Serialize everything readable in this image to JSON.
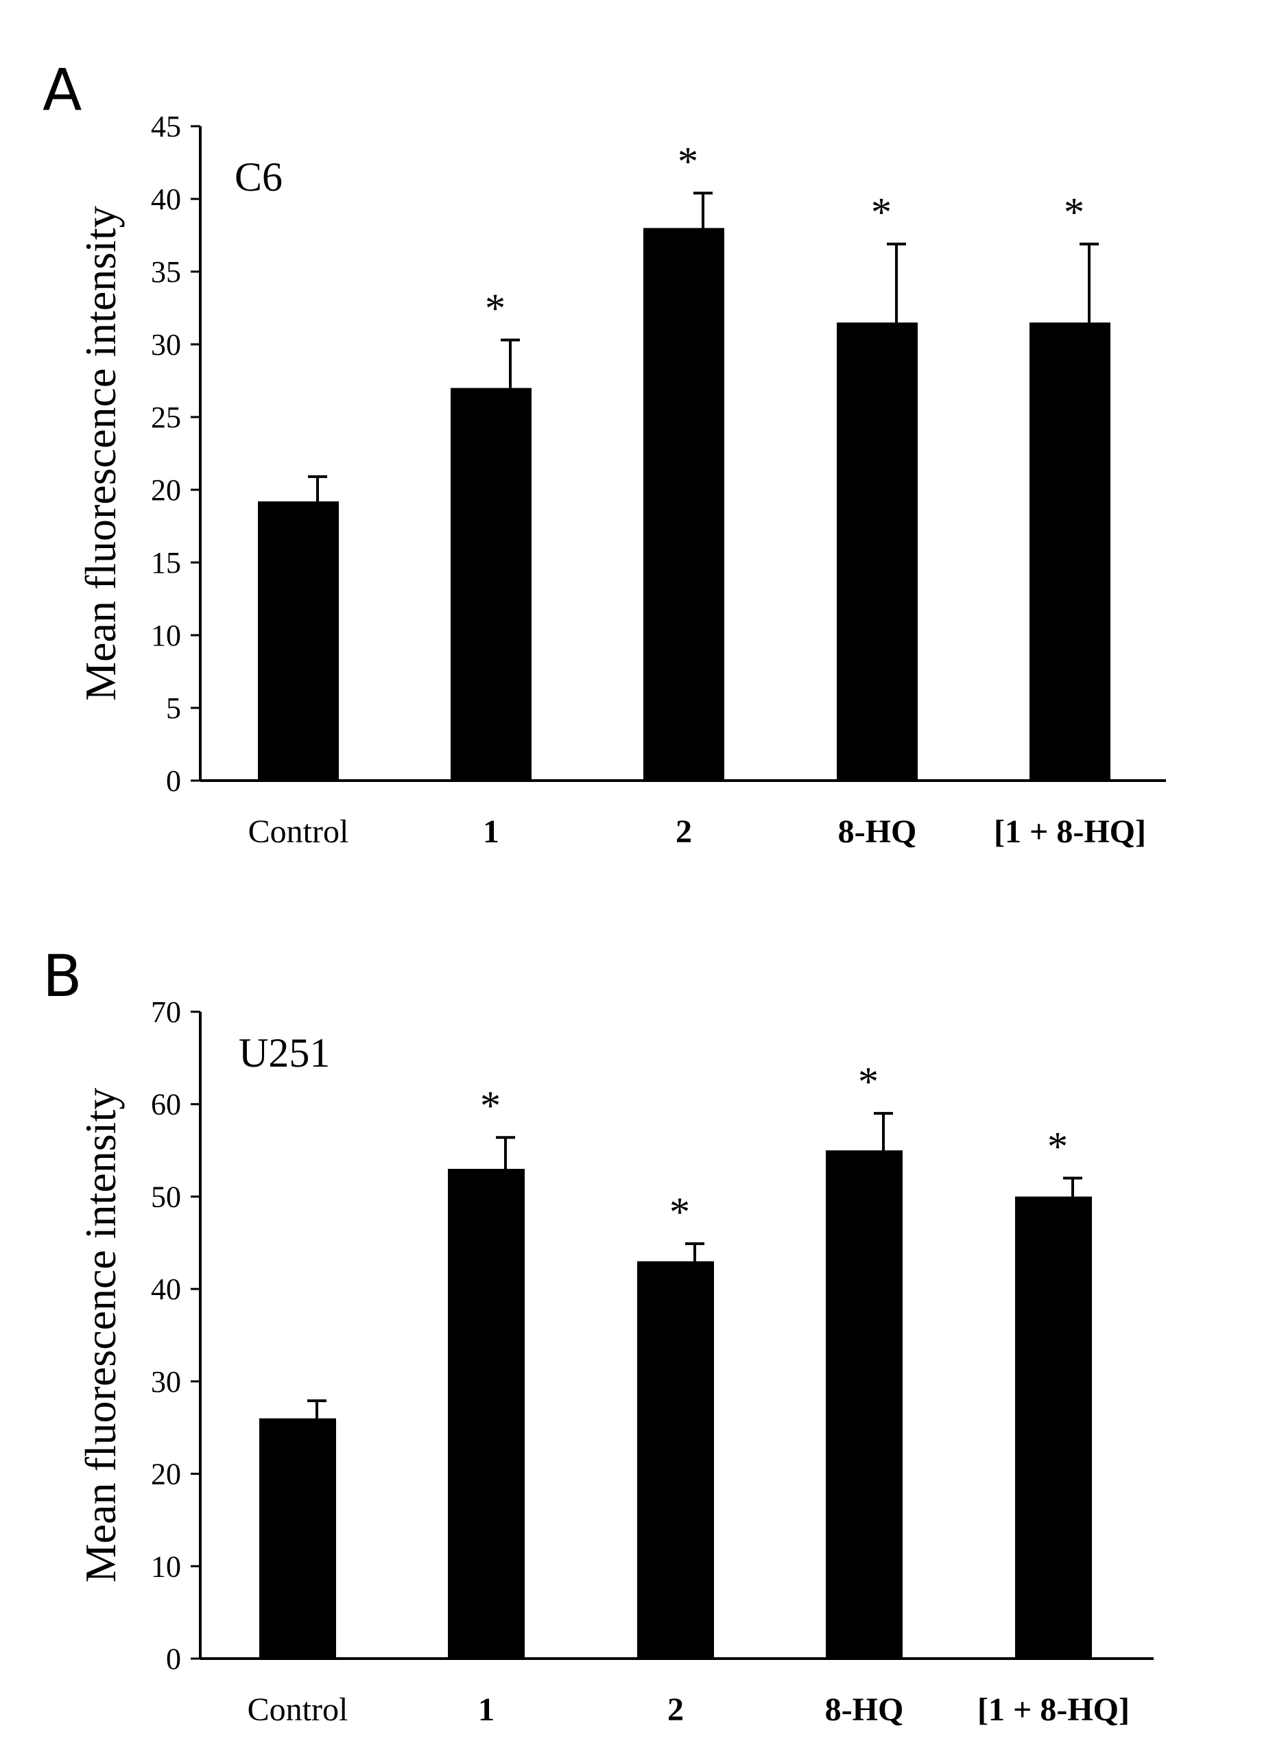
{
  "figure": {
    "panels": [
      "A",
      "B"
    ]
  },
  "chart_data": [
    {
      "type": "bar",
      "panel": "A",
      "cell_line": "C6",
      "title": "",
      "xlabel": "",
      "ylabel": "Mean fluorescence intensity",
      "categories": [
        "Control",
        "1",
        "2",
        "8-HQ",
        "[1 + 8-HQ]"
      ],
      "category_bold": [
        false,
        true,
        true,
        true,
        true
      ],
      "values": [
        19.2,
        27.0,
        38.0,
        31.5,
        31.5
      ],
      "errors": [
        1.7,
        3.3,
        2.4,
        5.4,
        5.4
      ],
      "significance": [
        "",
        "*",
        "*",
        "*",
        "*"
      ],
      "ylim": [
        0,
        45
      ],
      "yticks": [
        0,
        5,
        10,
        15,
        20,
        25,
        30,
        35,
        40,
        45
      ],
      "grid": false,
      "bar_color": "#000000"
    },
    {
      "type": "bar",
      "panel": "B",
      "cell_line": "U251",
      "title": "",
      "xlabel": "",
      "ylabel": "Mean fluorescence intensity",
      "categories": [
        "Control",
        "1",
        "2",
        "8-HQ",
        "[1 + 8-HQ]"
      ],
      "category_bold": [
        false,
        true,
        true,
        true,
        true
      ],
      "values": [
        26.0,
        53.0,
        43.0,
        55.0,
        50.0
      ],
      "errors": [
        1.9,
        3.4,
        1.9,
        4.0,
        2.0
      ],
      "significance": [
        "",
        "*",
        "*",
        "*",
        "*"
      ],
      "ylim": [
        0,
        70
      ],
      "yticks": [
        0,
        10,
        20,
        30,
        40,
        50,
        60,
        70
      ],
      "grid": false,
      "bar_color": "#000000"
    }
  ]
}
